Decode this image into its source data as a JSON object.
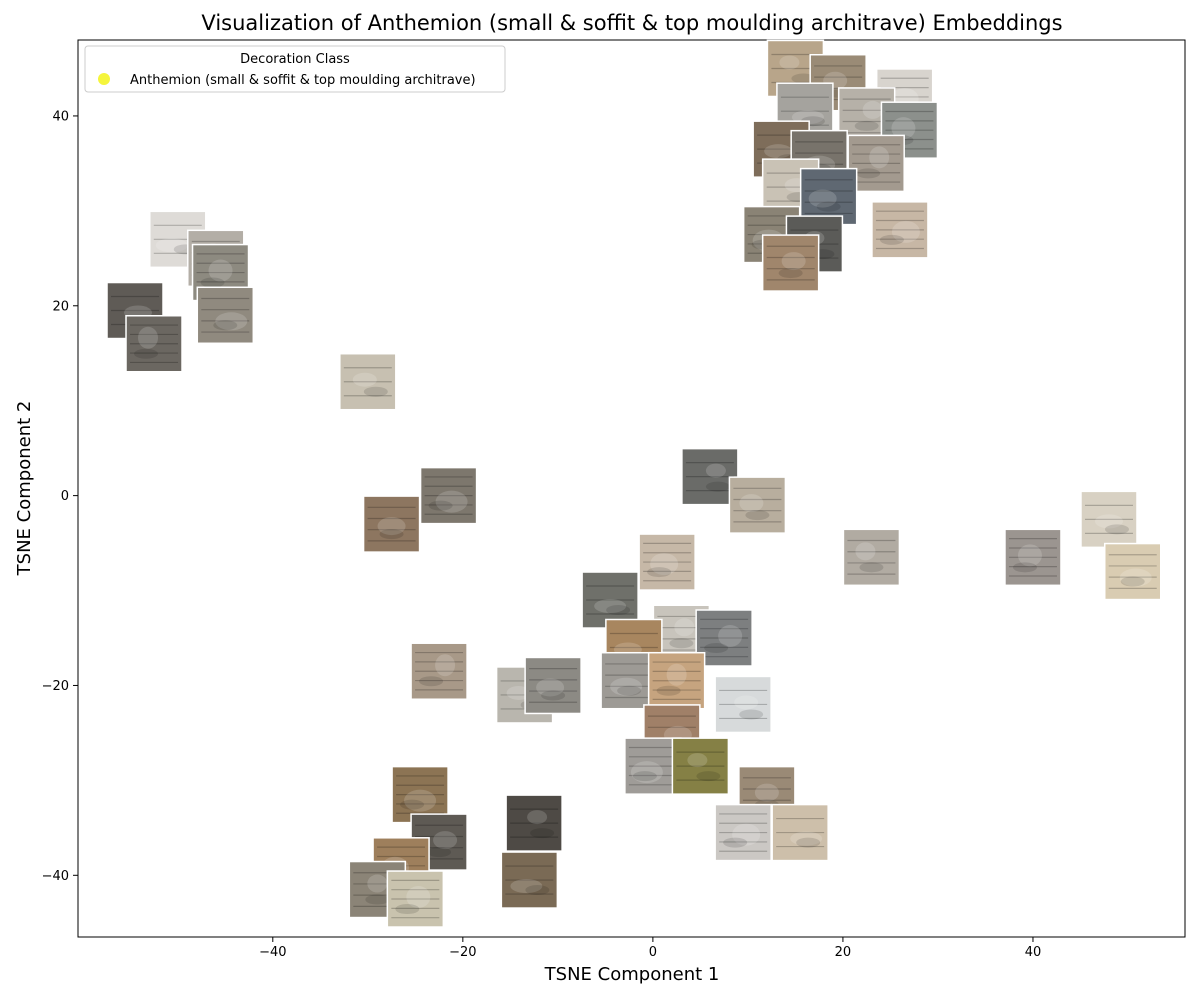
{
  "chart_data": {
    "type": "scatter",
    "title": "Visualization of Anthemion (small & soffit & top moulding architrave) Embeddings",
    "xlabel": "TSNE Component 1",
    "ylabel": "TSNE Component 2",
    "xlim": [
      -60.5,
      56
    ],
    "ylim": [
      -46.5,
      48
    ],
    "x_ticks": [
      -40,
      -20,
      0,
      20,
      40
    ],
    "y_ticks": [
      -40,
      -20,
      0,
      20,
      40
    ],
    "grid": false,
    "legend": {
      "placement": "top-left",
      "title": "Decoration Class",
      "entries": [
        {
          "label": "Anthemion (small & soffit & top moulding architrave)",
          "color": "#f5f53c"
        }
      ]
    },
    "marker": "image-thumbnail",
    "series": [
      {
        "name": "Anthemion (small & soffit & top moulding architrave)",
        "color": "#f5f53c",
        "points": [
          {
            "x": 15.0,
            "y": 45.0,
            "tone": "#b8a58a"
          },
          {
            "x": 19.5,
            "y": 43.5,
            "tone": "#9a8b76"
          },
          {
            "x": 26.5,
            "y": 42.0,
            "tone": "#d8d4ce"
          },
          {
            "x": 16.0,
            "y": 40.5,
            "tone": "#a5a39e"
          },
          {
            "x": 22.5,
            "y": 40.0,
            "tone": "#b6b1a8"
          },
          {
            "x": 27.0,
            "y": 38.5,
            "tone": "#8c908c"
          },
          {
            "x": 13.5,
            "y": 36.5,
            "tone": "#7e6d5a"
          },
          {
            "x": 17.5,
            "y": 35.5,
            "tone": "#78736b"
          },
          {
            "x": 23.5,
            "y": 35.0,
            "tone": "#a39a8f"
          },
          {
            "x": 14.5,
            "y": 32.5,
            "tone": "#c9c2b5"
          },
          {
            "x": 18.5,
            "y": 31.5,
            "tone": "#5f6872"
          },
          {
            "x": 12.5,
            "y": 27.5,
            "tone": "#8a8375"
          },
          {
            "x": 17.0,
            "y": 26.5,
            "tone": "#5b5b58"
          },
          {
            "x": 14.5,
            "y": 24.5,
            "tone": "#a0866c"
          },
          {
            "x": 26.0,
            "y": 28.0,
            "tone": "#c7b7a5"
          },
          {
            "x": -50.0,
            "y": 27.0,
            "tone": "#dedbd7"
          },
          {
            "x": -46.0,
            "y": 25.0,
            "tone": "#b3aea6"
          },
          {
            "x": -45.5,
            "y": 23.5,
            "tone": "#8d8a80"
          },
          {
            "x": -54.5,
            "y": 19.5,
            "tone": "#5f5b56"
          },
          {
            "x": -45.0,
            "y": 19.0,
            "tone": "#908a7f"
          },
          {
            "x": -52.5,
            "y": 16.0,
            "tone": "#6b6761"
          },
          {
            "x": -30.0,
            "y": 12.0,
            "tone": "#c7c0b1"
          },
          {
            "x": -27.5,
            "y": -3.0,
            "tone": "#8d7660"
          },
          {
            "x": -21.5,
            "y": 0.0,
            "tone": "#7d776d"
          },
          {
            "x": 6.0,
            "y": 2.0,
            "tone": "#6a6b68"
          },
          {
            "x": 11.0,
            "y": -1.0,
            "tone": "#b8ae9e"
          },
          {
            "x": 1.5,
            "y": -7.0,
            "tone": "#c6b8a7"
          },
          {
            "x": -4.5,
            "y": -11.0,
            "tone": "#6f706a"
          },
          {
            "x": 3.0,
            "y": -14.5,
            "tone": "#c8c4bc"
          },
          {
            "x": 7.5,
            "y": -15.0,
            "tone": "#7d7f80"
          },
          {
            "x": -2.0,
            "y": -16.0,
            "tone": "#a8865f"
          },
          {
            "x": -2.5,
            "y": -19.5,
            "tone": "#9d9a95"
          },
          {
            "x": 2.5,
            "y": -19.5,
            "tone": "#c6a47f"
          },
          {
            "x": 9.5,
            "y": -22.0,
            "tone": "#d7dadb"
          },
          {
            "x": 2.0,
            "y": -25.0,
            "tone": "#a08068"
          },
          {
            "x": 0.0,
            "y": -28.5,
            "tone": "#9f9c98"
          },
          {
            "x": 5.0,
            "y": -28.5,
            "tone": "#858045"
          },
          {
            "x": 12.0,
            "y": -31.5,
            "tone": "#9a8a76"
          },
          {
            "x": 9.5,
            "y": -35.5,
            "tone": "#cbc8c4"
          },
          {
            "x": 15.5,
            "y": -35.5,
            "tone": "#cdbfaa"
          },
          {
            "x": 23.0,
            "y": -6.5,
            "tone": "#b1aba2"
          },
          {
            "x": 40.0,
            "y": -6.5,
            "tone": "#9b9590"
          },
          {
            "x": 48.0,
            "y": -2.5,
            "tone": "#d8d1c3"
          },
          {
            "x": 50.5,
            "y": -8.0,
            "tone": "#d9ccb2"
          },
          {
            "x": -22.5,
            "y": -18.5,
            "tone": "#a89988"
          },
          {
            "x": -13.5,
            "y": -21.0,
            "tone": "#b9b6ae"
          },
          {
            "x": -10.5,
            "y": -20.0,
            "tone": "#8c8a84"
          },
          {
            "x": -24.5,
            "y": -31.5,
            "tone": "#8c7454"
          },
          {
            "x": -12.5,
            "y": -34.5,
            "tone": "#4e4a45"
          },
          {
            "x": -22.5,
            "y": -36.5,
            "tone": "#5e5a54"
          },
          {
            "x": -26.5,
            "y": -39.0,
            "tone": "#9e7f5c"
          },
          {
            "x": -13.0,
            "y": -40.5,
            "tone": "#7a6a55"
          },
          {
            "x": -29.0,
            "y": -41.5,
            "tone": "#8b8477"
          },
          {
            "x": -25.0,
            "y": -42.5,
            "tone": "#c9c3ae"
          }
        ]
      }
    ]
  }
}
